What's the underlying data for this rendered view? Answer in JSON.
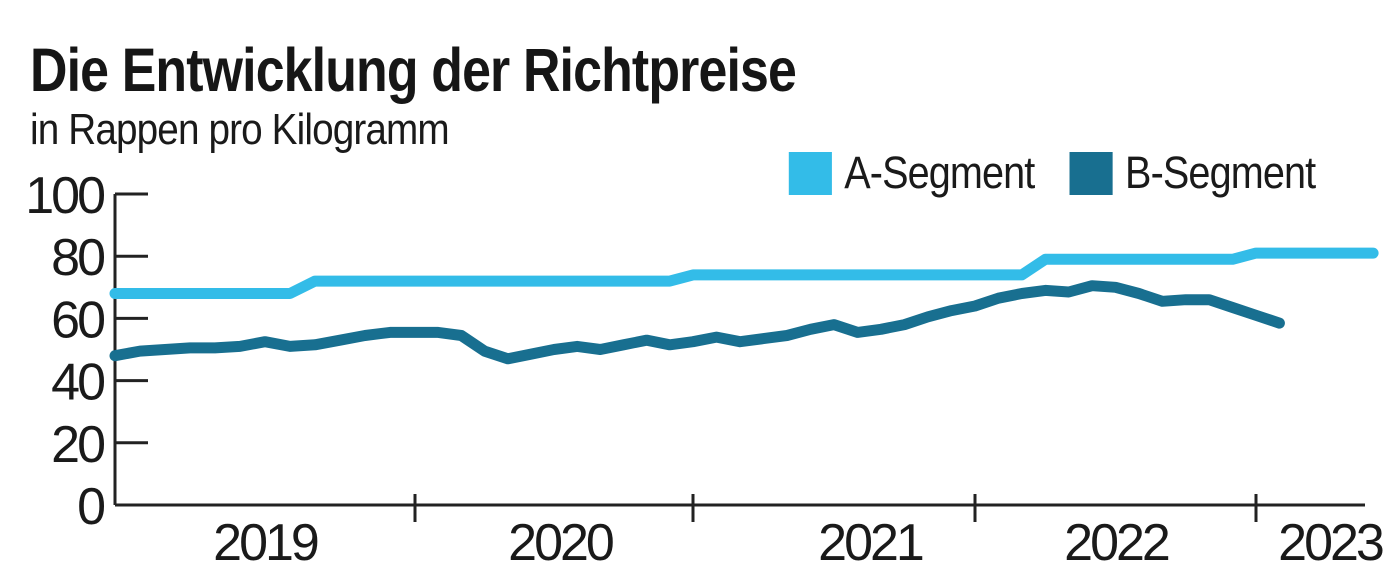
{
  "title": "Die Entwicklung der Richtpreise",
  "subtitle": "in Rappen pro Kilogramm",
  "legend": {
    "items": [
      {
        "label": "A-Segment",
        "color": "#33bce8"
      },
      {
        "label": "B-Segment",
        "color": "#186f90"
      }
    ]
  },
  "colors": {
    "series_a": "#33bce8",
    "series_b": "#186f90",
    "axis": "#222222",
    "text": "#1a1a1a"
  },
  "chart_data": {
    "type": "line",
    "title": "Die Entwicklung der Richtpreise",
    "subtitle": "in Rappen pro Kilogramm",
    "ylabel": "Rappen pro Kilogramm",
    "ylim": [
      0,
      100
    ],
    "y_ticks": [
      0,
      20,
      40,
      60,
      80,
      100
    ],
    "x_tick_labels": [
      "2019",
      "2020",
      "2021",
      "2022",
      "2023"
    ],
    "x_unit": "month",
    "x_start": "2019-01",
    "grid": false,
    "legend_position": "top-right",
    "series": [
      {
        "name": "A-Segment",
        "color": "#33bce8",
        "start": "2019-01",
        "values": [
          68,
          68,
          68,
          68,
          68,
          68,
          68,
          68,
          72,
          72,
          72,
          72,
          72,
          72,
          72,
          72,
          72,
          72,
          72,
          72,
          72,
          72,
          72,
          72,
          74,
          74,
          74,
          74,
          74,
          74,
          74,
          74,
          74,
          74,
          74,
          74,
          74,
          74,
          74,
          79,
          79,
          79,
          79,
          79,
          79,
          79,
          79,
          79,
          81,
          81,
          81,
          81,
          81,
          81
        ]
      },
      {
        "name": "B-Segment",
        "color": "#186f90",
        "start": "2019-01",
        "values": [
          48,
          49.5,
          50,
          50.5,
          50.5,
          51,
          52.5,
          51,
          51.5,
          53,
          54.5,
          55.5,
          55.5,
          55.5,
          54.5,
          49.5,
          47,
          48.5,
          50,
          51,
          50,
          51.5,
          53,
          51.5,
          52.5,
          54,
          52.5,
          53.5,
          54.5,
          56.5,
          58,
          55.5,
          56.5,
          58,
          60.5,
          62.5,
          64,
          66.5,
          68,
          69,
          68.5,
          70.5,
          70,
          68,
          65.5,
          66,
          66,
          63.5,
          61,
          58.5
        ]
      }
    ]
  }
}
